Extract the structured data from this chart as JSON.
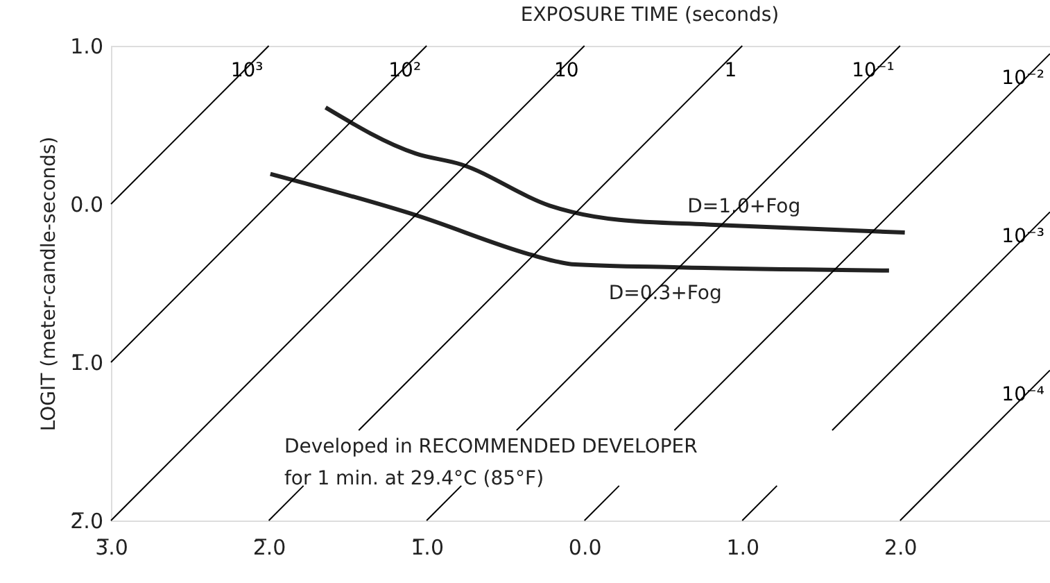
{
  "chart_data": {
    "type": "line",
    "title": "EXPOSURE TIME (seconds)",
    "ylabel": "LOGIT (meter-candle-seconds)",
    "xlim": [
      -3,
      2.95
    ],
    "ylim": [
      -2,
      1
    ],
    "xticks": [
      {
        "value": -3,
        "label": "3̅.0"
      },
      {
        "value": -2,
        "label": "2̅.0"
      },
      {
        "value": -1,
        "label": "1̅.0"
      },
      {
        "value": 0,
        "label": "0.0"
      },
      {
        "value": 1,
        "label": "1.0"
      },
      {
        "value": 2,
        "label": "2.0"
      }
    ],
    "yticks": [
      {
        "value": 1,
        "label": "1.0"
      },
      {
        "value": 0,
        "label": "0.0"
      },
      {
        "value": -1,
        "label": "1̅.0"
      },
      {
        "value": -2,
        "label": "2̅.0"
      }
    ],
    "grid": false,
    "legend": false,
    "marker": "none",
    "line_style": "solid",
    "series": [
      {
        "name": "D=1.0+Fog",
        "color": "#222222",
        "x": [
          -1.64,
          -1.07,
          -0.78,
          -0.22,
          -0.08,
          0.22,
          0.8,
          2.03
        ],
        "values": [
          0.61,
          0.32,
          0.25,
          -0.01,
          -0.05,
          -0.1,
          -0.13,
          -0.18
        ]
      },
      {
        "name": "D=0.3+Fog",
        "color": "#222222",
        "x": [
          -1.99,
          -1.07,
          -0.34,
          -0.19,
          -0.08,
          0.6,
          1.93
        ],
        "values": [
          0.19,
          -0.07,
          -0.32,
          -0.36,
          -0.38,
          -0.4,
          -0.42
        ]
      },
      {
        "name": "10³",
        "color": "#000000",
        "x": [
          -3,
          -2
        ],
        "values": [
          0,
          1
        ]
      },
      {
        "name": "10²",
        "color": "#000000",
        "x": [
          -3,
          -1
        ],
        "values": [
          -1,
          1
        ]
      },
      {
        "name": "10",
        "color": "#000000",
        "x": [
          -3,
          0
        ],
        "values": [
          -2,
          1
        ]
      },
      {
        "name": "1",
        "color": "#000000",
        "x": [
          -2,
          -1.78,
          null,
          -1.43,
          1
        ],
        "values": [
          -2,
          -1.78,
          null,
          -1.43,
          1
        ]
      },
      {
        "name": "10⁻¹",
        "color": "#000000",
        "x": [
          -1,
          -0.78,
          null,
          -0.43,
          2
        ],
        "values": [
          -2,
          -1.78,
          null,
          -1.43,
          1
        ]
      },
      {
        "name": "10⁻²",
        "color": "#000000",
        "x": [
          0,
          0.22,
          null,
          0.57,
          2.95
        ],
        "values": [
          -2,
          -1.78,
          null,
          -1.43,
          0.95
        ]
      },
      {
        "name": "10⁻³",
        "color": "#000000",
        "x": [
          1,
          1.22,
          null,
          1.57,
          2.95
        ],
        "values": [
          -2,
          -1.78,
          null,
          -1.43,
          -0.05
        ]
      },
      {
        "name": "10⁻⁴",
        "color": "#000000",
        "x": [
          2,
          2.95
        ],
        "values": [
          -2,
          -1.05
        ]
      }
    ],
    "annotations": [
      "Developed in RECOMMENDED DEVELOPER",
      "for 1 min. at 29.4°C (85°F)"
    ]
  }
}
